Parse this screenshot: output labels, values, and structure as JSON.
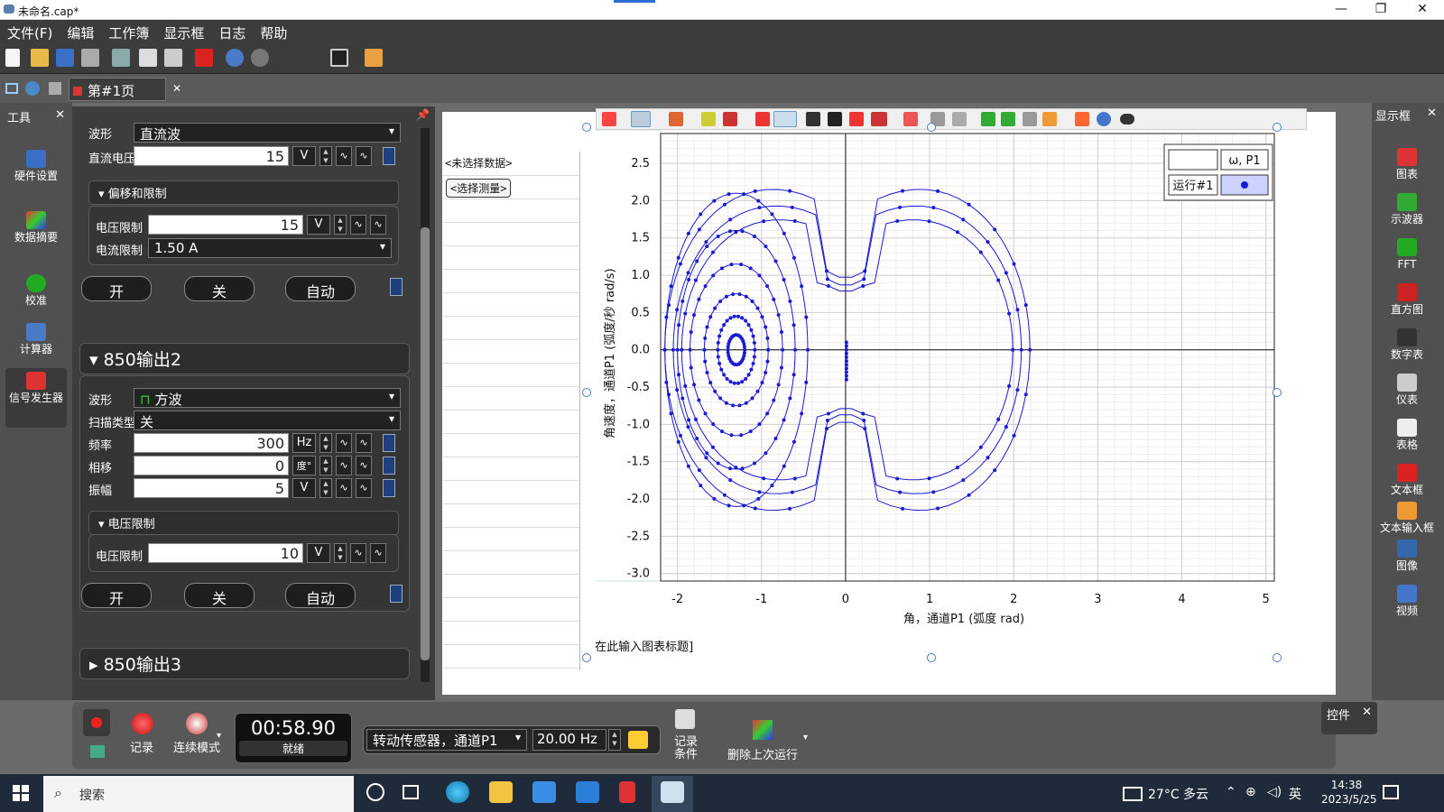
{
  "window": {
    "title": "未命名.cap*",
    "min": "—",
    "max": "❐",
    "close": "✕"
  },
  "menu": [
    "文件(F)",
    "编辑",
    "工作簿",
    "显示框",
    "日志",
    "帮助"
  ],
  "tab": {
    "label": "第#1页",
    "close": "✕"
  },
  "tools": {
    "header": "工具",
    "close": "✕",
    "items": [
      {
        "label": "硬件设置",
        "icon": "hardware-icon"
      },
      {
        "label": "数据摘要",
        "icon": "data-summary-icon"
      },
      {
        "label": "校准",
        "icon": "calibrate-icon"
      },
      {
        "label": "计算器",
        "icon": "calculator-icon"
      },
      {
        "label": "信号发生器",
        "icon": "signal-generator-icon"
      }
    ]
  },
  "signal": {
    "top_waveform_label": "波形",
    "top_waveform_value": "直流波",
    "dc_label": "直流电压",
    "dc_value": "15",
    "dc_unit": "V",
    "offset_header": "偏移和限制",
    "vlimit_label": "电压限制",
    "vlimit_value": "15",
    "vlimit_unit": "V",
    "ilimit_label": "电流限制",
    "ilimit_value": "1.50 A",
    "on": "开",
    "off": "关",
    "auto": "自动",
    "out2_header": "850输出2",
    "wave_label": "波形",
    "wave_value": "方波",
    "sweep_label": "扫描类型",
    "sweep_value": "关",
    "freq_label": "频率",
    "freq_value": "300",
    "freq_unit": "Hz",
    "phase_label": "相移",
    "phase_value": "0",
    "phase_unit": "度°",
    "amp_label": "振幅",
    "amp_value": "5",
    "amp_unit": "V",
    "vlimit2_header": "电压限制",
    "vlimit2_label": "电压限制",
    "vlimit2_value": "10",
    "vlimit2_unit": "V",
    "out3_header": "850输出3"
  },
  "table": {
    "no_data": "<未选择数据>",
    "select_btn": "<选择测量>"
  },
  "chart_data": {
    "type": "scatter",
    "title": "[在此输入图表标题]",
    "xlabel": "角，通道P1 (弧度 rad)",
    "ylabel": "角速度，通道P1 (弧度/秒 rad/s)",
    "xlim": [
      -2.2,
      5.1
    ],
    "ylim": [
      -3.1,
      2.9
    ],
    "xticks": [
      -2,
      -1,
      0,
      1,
      2,
      3,
      4,
      5
    ],
    "yticks": [
      2.5,
      2.0,
      1.5,
      1.0,
      0.5,
      0.0,
      -0.5,
      -1.0,
      -1.5,
      -2.0,
      -2.5,
      -3.0
    ],
    "legend": {
      "header": "ω, P1",
      "run": "运行#1",
      "position": "top-right"
    },
    "series_color": "#1a1ad6",
    "series": [
      {
        "name": "运行#1",
        "trajectory": "damped double-well phase orbit",
        "loops": [
          {
            "cx": 0.0,
            "cy": 0.0,
            "rx": 2.15,
            "ry": 2.9,
            "skew": true
          },
          {
            "cx": 0.0,
            "cy": 0.0,
            "rx": 2.05,
            "ry": 2.6,
            "skew": true
          },
          {
            "cx": 0.0,
            "cy": 0.0,
            "rx": 1.95,
            "ry": 2.35,
            "skew": true
          },
          {
            "cx": -1.3,
            "cy": 0.0,
            "rx": 0.85,
            "ry": 2.1
          },
          {
            "cx": -1.3,
            "cy": 0.0,
            "rx": 0.7,
            "ry": 1.6
          },
          {
            "cx": -1.3,
            "cy": 0.0,
            "rx": 0.55,
            "ry": 1.15
          },
          {
            "cx": -1.3,
            "cy": 0.0,
            "rx": 0.38,
            "ry": 0.75
          },
          {
            "cx": -1.3,
            "cy": 0.0,
            "rx": 0.22,
            "ry": 0.45
          },
          {
            "cx": -1.3,
            "cy": 0.0,
            "rx": 0.1,
            "ry": 0.2
          }
        ]
      }
    ]
  },
  "display": {
    "header": "显示框",
    "close": "✕",
    "items": [
      {
        "label": "图表",
        "icon": "graph-icon"
      },
      {
        "label": "示波器",
        "icon": "scope-icon"
      },
      {
        "label": "FFT",
        "icon": "fft-icon"
      },
      {
        "label": "直方图",
        "icon": "histogram-icon"
      },
      {
        "label": "数字表",
        "icon": "digits-icon"
      },
      {
        "label": "仪表",
        "icon": "meter-icon"
      },
      {
        "label": "表格",
        "icon": "table-icon"
      },
      {
        "label": "文本框",
        "icon": "textbox-icon"
      },
      {
        "label": "文本输入框",
        "icon": "text-entry-icon"
      },
      {
        "label": "图像",
        "icon": "image-icon"
      },
      {
        "label": "视频",
        "icon": "video-icon"
      }
    ]
  },
  "controls": {
    "header": "控件",
    "close": "✕",
    "record": "记录",
    "mode": "连续模式",
    "time": "00:58.90",
    "status": "就绪",
    "sensor": "转动传感器，通道P1",
    "rate": "20.00 Hz",
    "condition": "记录条件",
    "delete_run": "删除上次运行"
  },
  "taskbar": {
    "search": "搜索",
    "weather": "27°C 多云",
    "lang": "英",
    "time": "14:38",
    "date": "2023/5/25"
  },
  "colors": {
    "accent": "#1a1ad6",
    "panel": "#3d3d3d",
    "record": "#e02020"
  }
}
